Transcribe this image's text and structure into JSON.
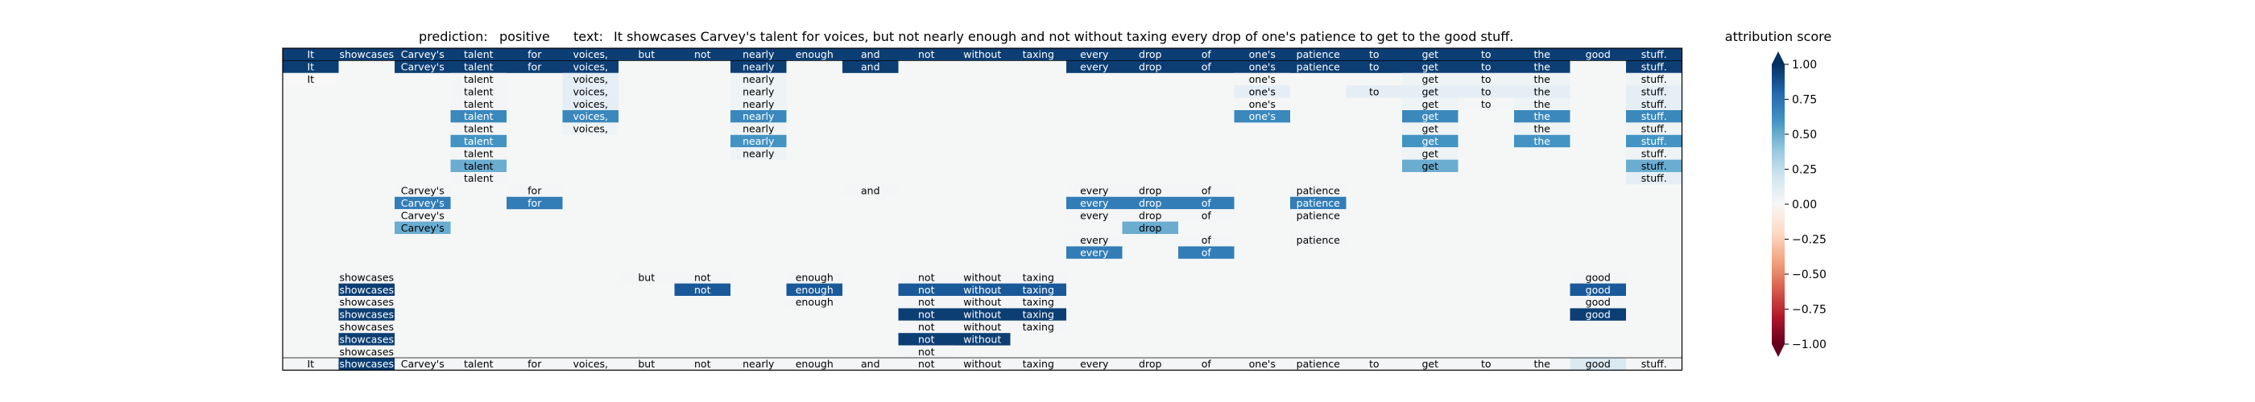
{
  "header": {
    "prediction_label": "prediction:",
    "prediction_value": "positive",
    "text_label": "text:",
    "text_value": "It showcases Carvey's talent for voices, but not nearly enough and not without taxing every drop of one's patience to get to the good stuff."
  },
  "colorbar": {
    "title": "attribution score",
    "ticks": [
      "1.00",
      "0.75",
      "0.50",
      "0.25",
      "0.00",
      "−0.25",
      "−0.50",
      "−0.75",
      "−1.00"
    ],
    "tick_values": [
      1.0,
      0.75,
      0.5,
      0.25,
      0.0,
      -0.25,
      -0.5,
      -0.75,
      -1.0
    ],
    "colormap": "RdBu",
    "color_stops": [
      "#67001f",
      "#b2182b",
      "#d6604d",
      "#f4a582",
      "#fddbc7",
      "#f7f7f7",
      "#d1e5f0",
      "#92c5de",
      "#4393c3",
      "#2166ac",
      "#053061"
    ]
  },
  "chart_data": {
    "type": "heatmap",
    "tokens": [
      "It",
      "showcases",
      "Carvey's",
      "talent",
      "for",
      "voices,",
      "but",
      "not",
      "nearly",
      "enough",
      "and",
      "not",
      "without",
      "taxing",
      "every",
      "drop",
      "of",
      "one's",
      "patience",
      "to",
      "get",
      "to",
      "the",
      "good",
      "stuff."
    ],
    "rows": [
      {
        "cells": [
          [
            0,
            0.95
          ],
          [
            1,
            0.95
          ],
          [
            2,
            0.95
          ],
          [
            3,
            0.95
          ],
          [
            4,
            0.95
          ],
          [
            5,
            0.95
          ],
          [
            6,
            0.95
          ],
          [
            7,
            0.95
          ],
          [
            8,
            0.95
          ],
          [
            9,
            0.95
          ],
          [
            10,
            0.95
          ],
          [
            11,
            0.95
          ],
          [
            12,
            0.95
          ],
          [
            13,
            0.95
          ],
          [
            14,
            0.95
          ],
          [
            15,
            0.95
          ],
          [
            16,
            0.95
          ],
          [
            17,
            0.95
          ],
          [
            18,
            0.95
          ],
          [
            19,
            0.95
          ],
          [
            20,
            0.95
          ],
          [
            21,
            0.95
          ],
          [
            22,
            0.95
          ],
          [
            23,
            0.95
          ],
          [
            24,
            0.95
          ]
        ]
      },
      {
        "cells": [
          [
            0,
            0.95
          ],
          [
            2,
            0.95
          ],
          [
            3,
            0.95
          ],
          [
            4,
            0.95
          ],
          [
            5,
            0.95
          ],
          [
            8,
            0.95
          ],
          [
            10,
            0.95
          ],
          [
            14,
            0.95
          ],
          [
            15,
            0.95
          ],
          [
            16,
            0.95
          ],
          [
            17,
            0.95
          ],
          [
            18,
            0.95
          ],
          [
            19,
            0.95
          ],
          [
            20,
            0.95
          ],
          [
            21,
            0.95
          ],
          [
            22,
            0.95
          ],
          [
            24,
            0.95
          ]
        ]
      },
      {
        "cells": [
          [
            0,
            0.0
          ],
          [
            3,
            0.02
          ],
          [
            5,
            0.1
          ],
          [
            8,
            0.05
          ],
          [
            17,
            0.02
          ],
          [
            20,
            0.05
          ],
          [
            21,
            0.05
          ],
          [
            22,
            0.05
          ],
          [
            24,
            0.05
          ]
        ]
      },
      {
        "cells": [
          [
            3,
            0.02
          ],
          [
            5,
            0.1
          ],
          [
            8,
            0.05
          ],
          [
            17,
            0.1
          ],
          [
            19,
            0.1
          ],
          [
            20,
            0.1
          ],
          [
            21,
            0.1
          ],
          [
            22,
            0.1
          ],
          [
            24,
            0.1
          ]
        ]
      },
      {
        "cells": [
          [
            3,
            0.02
          ],
          [
            5,
            0.1
          ],
          [
            8,
            0.05
          ],
          [
            17,
            0.02
          ],
          [
            20,
            0.05
          ],
          [
            21,
            0.02
          ],
          [
            22,
            0.05
          ],
          [
            24,
            0.1
          ]
        ]
      },
      {
        "cells": [
          [
            3,
            0.65
          ],
          [
            5,
            0.65
          ],
          [
            8,
            0.65
          ],
          [
            17,
            0.65
          ],
          [
            20,
            0.65
          ],
          [
            22,
            0.65
          ],
          [
            24,
            0.65
          ]
        ]
      },
      {
        "cells": [
          [
            3,
            0.02
          ],
          [
            5,
            0.05
          ],
          [
            8,
            0.05
          ],
          [
            20,
            0.05
          ],
          [
            22,
            0.05
          ],
          [
            24,
            0.05
          ]
        ]
      },
      {
        "cells": [
          [
            3,
            0.6
          ],
          [
            8,
            0.6
          ],
          [
            20,
            0.6
          ],
          [
            22,
            0.6
          ],
          [
            24,
            0.6
          ]
        ]
      },
      {
        "cells": [
          [
            3,
            0.02
          ],
          [
            8,
            0.05
          ],
          [
            20,
            0.05
          ],
          [
            24,
            0.05
          ]
        ]
      },
      {
        "cells": [
          [
            3,
            0.5
          ],
          [
            20,
            0.5
          ],
          [
            24,
            0.5
          ]
        ]
      },
      {
        "cells": [
          [
            3,
            0.02
          ],
          [
            24,
            0.1
          ]
        ]
      },
      {
        "cells": [
          [
            2,
            0.02
          ],
          [
            4,
            0.02
          ],
          [
            10,
            0.02
          ],
          [
            14,
            0.02
          ],
          [
            15,
            0.02
          ],
          [
            16,
            0.02
          ],
          [
            18,
            0.02
          ]
        ]
      },
      {
        "cells": [
          [
            2,
            0.7
          ],
          [
            4,
            0.7
          ],
          [
            14,
            0.7
          ],
          [
            15,
            0.7
          ],
          [
            16,
            0.7
          ],
          [
            18,
            0.7
          ]
        ]
      },
      {
        "cells": [
          [
            2,
            0.02
          ],
          [
            14,
            0.02
          ],
          [
            15,
            0.02
          ],
          [
            16,
            0.02
          ],
          [
            18,
            0.02
          ]
        ]
      },
      {
        "cells": [
          [
            2,
            0.5
          ],
          [
            15,
            0.5
          ]
        ]
      },
      {
        "cells": [
          [
            14,
            0.02
          ],
          [
            16,
            0.02
          ],
          [
            18,
            0.02
          ]
        ]
      },
      {
        "cells": [
          [
            14,
            0.7
          ],
          [
            16,
            0.7
          ]
        ]
      },
      {
        "cells": []
      },
      {
        "cells": [
          [
            1,
            0.02
          ],
          [
            6,
            0.02
          ],
          [
            7,
            0.02
          ],
          [
            9,
            0.02
          ],
          [
            11,
            0.02
          ],
          [
            12,
            0.02
          ],
          [
            13,
            0.02
          ],
          [
            23,
            0.02
          ]
        ]
      },
      {
        "cells": [
          [
            1,
            0.95
          ],
          [
            7,
            0.85
          ],
          [
            9,
            0.85
          ],
          [
            11,
            0.85
          ],
          [
            12,
            0.85
          ],
          [
            13,
            0.85
          ],
          [
            23,
            0.85
          ]
        ]
      },
      {
        "cells": [
          [
            1,
            0.02
          ],
          [
            9,
            0.02
          ],
          [
            11,
            0.02
          ],
          [
            12,
            0.02
          ],
          [
            13,
            0.02
          ],
          [
            23,
            0.02
          ]
        ]
      },
      {
        "cells": [
          [
            1,
            0.95
          ],
          [
            11,
            0.95
          ],
          [
            12,
            0.95
          ],
          [
            13,
            0.95
          ],
          [
            23,
            0.95
          ]
        ]
      },
      {
        "cells": [
          [
            1,
            0.02
          ],
          [
            11,
            0.02
          ],
          [
            12,
            0.02
          ],
          [
            13,
            0.02
          ]
        ]
      },
      {
        "cells": [
          [
            1,
            0.95
          ],
          [
            11,
            0.95
          ],
          [
            12,
            0.95
          ]
        ]
      },
      {
        "cells": [
          [
            1,
            0.02
          ],
          [
            11,
            0.02
          ]
        ]
      },
      {
        "cells": [
          [
            0,
            0.02
          ],
          [
            1,
            0.95
          ],
          [
            2,
            0.02
          ],
          [
            3,
            0.02
          ],
          [
            4,
            0.02
          ],
          [
            5,
            0.02
          ],
          [
            6,
            0.02
          ],
          [
            7,
            0.02
          ],
          [
            8,
            0.02
          ],
          [
            9,
            0.02
          ],
          [
            10,
            0.02
          ],
          [
            11,
            0.02
          ],
          [
            12,
            0.02
          ],
          [
            13,
            0.02
          ],
          [
            14,
            0.02
          ],
          [
            15,
            0.02
          ],
          [
            16,
            0.02
          ],
          [
            17,
            0.02
          ],
          [
            18,
            0.02
          ],
          [
            19,
            0.02
          ],
          [
            20,
            0.02
          ],
          [
            21,
            0.02
          ],
          [
            22,
            0.02
          ],
          [
            23,
            0.15
          ],
          [
            24,
            0.02
          ]
        ]
      }
    ],
    "value_range": [
      -1.0,
      1.0
    ]
  }
}
